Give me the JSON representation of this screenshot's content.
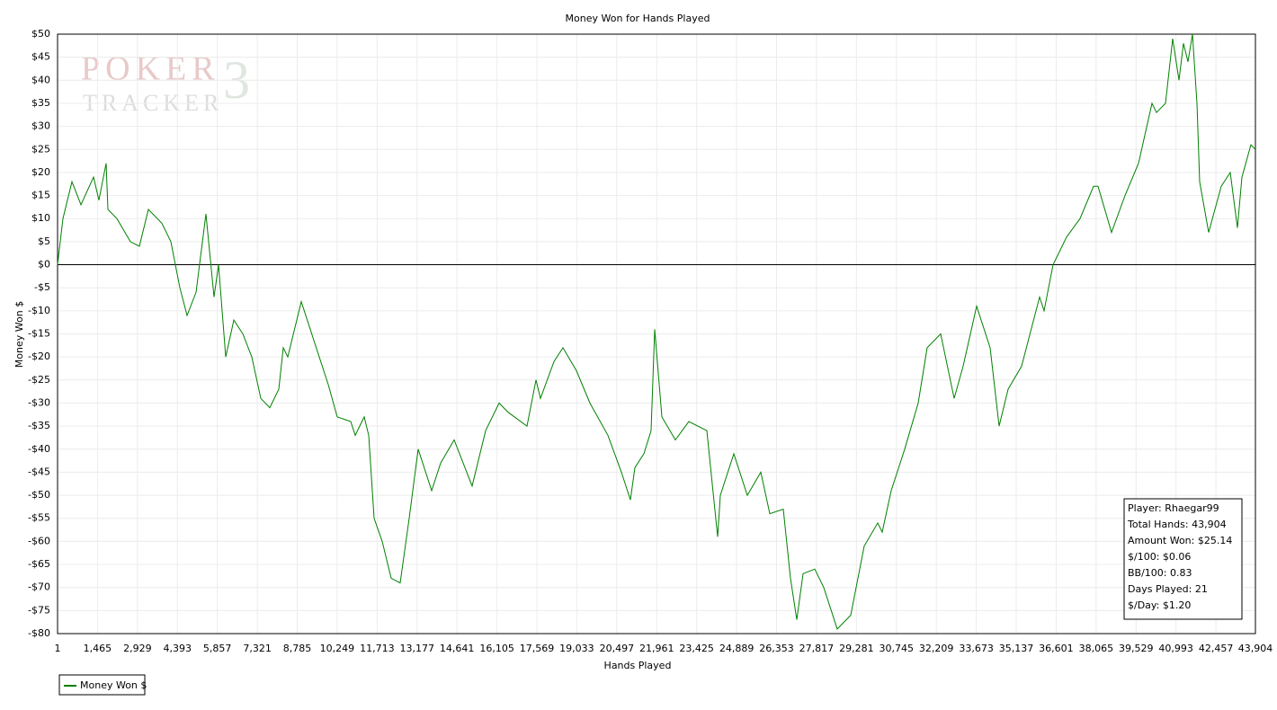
{
  "chart_data": {
    "type": "line",
    "title": "Money Won for Hands Played",
    "xlabel": "Hands Played",
    "ylabel": "Money Won $",
    "watermark": {
      "line1": "POKER",
      "line2": "TRACKER",
      "mark": "3"
    },
    "xlim": [
      1,
      43904
    ],
    "xticks": [
      1,
      {
        "value": 1465,
        "label": "1,465"
      },
      {
        "value": 2929,
        "label": "2,929"
      },
      {
        "value": 4393,
        "label": "4,393"
      },
      {
        "value": 5857,
        "label": "5,857"
      },
      {
        "value": 7321,
        "label": "7,321"
      },
      {
        "value": 8785,
        "label": "8,785"
      },
      {
        "value": 10249,
        "label": "10,249"
      },
      {
        "value": 11713,
        "label": "11,713"
      },
      {
        "value": 13177,
        "label": "13,177"
      },
      {
        "value": 14641,
        "label": "14,641"
      },
      {
        "value": 16105,
        "label": "16,105"
      },
      {
        "value": 17569,
        "label": "17,569"
      },
      {
        "value": 19033,
        "label": "19,033"
      },
      {
        "value": 20497,
        "label": "20,497"
      },
      {
        "value": 21961,
        "label": "21,961"
      },
      {
        "value": 23425,
        "label": "23,425"
      },
      {
        "value": 24889,
        "label": "24,889"
      },
      {
        "value": 26353,
        "label": "26,353"
      },
      {
        "value": 27817,
        "label": "27,817"
      },
      {
        "value": 29281,
        "label": "29,281"
      },
      {
        "value": 30745,
        "label": "30,745"
      },
      {
        "value": 32209,
        "label": "32,209"
      },
      {
        "value": 33673,
        "label": "33,673"
      },
      {
        "value": 35137,
        "label": "35,137"
      },
      {
        "value": 36601,
        "label": "36,601"
      },
      {
        "value": 38065,
        "label": "38,065"
      },
      {
        "value": 39529,
        "label": "39,529"
      },
      {
        "value": 40993,
        "label": "40,993"
      },
      {
        "value": 42457,
        "label": "42,457"
      },
      {
        "value": 43904,
        "label": "43,904"
      }
    ],
    "ylim": [
      -80,
      50
    ],
    "yticks": [
      {
        "value": 50,
        "label": "$50"
      },
      {
        "value": 45,
        "label": "$45"
      },
      {
        "value": 40,
        "label": "$40"
      },
      {
        "value": 35,
        "label": "$35"
      },
      {
        "value": 30,
        "label": "$30"
      },
      {
        "value": 25,
        "label": "$25"
      },
      {
        "value": 20,
        "label": "$20"
      },
      {
        "value": 15,
        "label": "$15"
      },
      {
        "value": 10,
        "label": "$10"
      },
      {
        "value": 5,
        "label": "$5"
      },
      {
        "value": 0,
        "label": "$0"
      },
      {
        "value": -5,
        "label": "-$5"
      },
      {
        "value": -10,
        "label": "-$10"
      },
      {
        "value": -15,
        "label": "-$15"
      },
      {
        "value": -20,
        "label": "-$20"
      },
      {
        "value": -25,
        "label": "-$25"
      },
      {
        "value": -30,
        "label": "-$30"
      },
      {
        "value": -35,
        "label": "-$35"
      },
      {
        "value": -40,
        "label": "-$40"
      },
      {
        "value": -45,
        "label": "-$45"
      },
      {
        "value": -50,
        "label": "-$50"
      },
      {
        "value": -55,
        "label": "-$55"
      },
      {
        "value": -60,
        "label": "-$60"
      },
      {
        "value": -65,
        "label": "-$65"
      },
      {
        "value": -70,
        "label": "-$70"
      },
      {
        "value": -75,
        "label": "-$75"
      },
      {
        "value": -80,
        "label": "-$80"
      }
    ],
    "grid": true,
    "zero_line": true,
    "legend": "bottom-left",
    "x": [
      1,
      198,
      528,
      857,
      1319,
      1517,
      1781,
      1847,
      2176,
      2671,
      3000,
      3330,
      3824,
      4154,
      4483,
      4747,
      5077,
      5439,
      5736,
      5901,
      6165,
      6461,
      6791,
      7121,
      7450,
      7780,
      8109,
      8274,
      8439,
      8933,
      9428,
      9922,
      10252,
      10746,
      10911,
      11240,
      11405,
      11603,
      11900,
      12229,
      12559,
      12888,
      13218,
      13712,
      14041,
      14536,
      15195,
      15689,
      16183,
      16513,
      17205,
      17535,
      17700,
      18194,
      18524,
      19018,
      19512,
      20172,
      20666,
      20996,
      21161,
      21491,
      21755,
      21886,
      22150,
      22644,
      23138,
      23797,
      24193,
      24292,
      24786,
      25281,
      25775,
      26105,
      26599,
      26863,
      27094,
      27324,
      27753,
      28083,
      28577,
      29071,
      29566,
      30060,
      30225,
      30555,
      31049,
      31543,
      31873,
      32367,
      32861,
      33191,
      33686,
      34180,
      34510,
      34839,
      35333,
      35993,
      36158,
      36487,
      36982,
      37476,
      37971,
      38135,
      38630,
      39124,
      39618,
      40113,
      40278,
      40607,
      40871,
      41102,
      41266,
      41431,
      41596,
      41761,
      41860,
      42189,
      42650,
      42980,
      43244,
      43409,
      43739,
      43904
    ],
    "series": [
      {
        "name": "Money Won $",
        "color": "#008000",
        "values": [
          0,
          10,
          18,
          13,
          19,
          14,
          22,
          12,
          10,
          5,
          4,
          12,
          9,
          5,
          -5,
          -11,
          -6,
          11,
          -7,
          0,
          -20,
          -12,
          -15,
          -20,
          -29,
          -31,
          -27,
          -18,
          -20,
          -8,
          -17,
          -26,
          -33,
          -34,
          -37,
          -33,
          -37,
          -55,
          -60,
          -68,
          -69,
          -55,
          -40,
          -49,
          -43,
          -38,
          -48,
          -36,
          -30,
          -32,
          -35,
          -25,
          -29,
          -21,
          -18,
          -23,
          -30,
          -37,
          -45,
          -51,
          -44,
          -41,
          -36,
          -14,
          -33,
          -38,
          -34,
          -36,
          -59,
          -50,
          -41,
          -50,
          -45,
          -54,
          -53,
          -68,
          -77,
          -67,
          -66,
          -70,
          -79,
          -76,
          -61,
          -56,
          -58,
          -49,
          -40,
          -30,
          -18,
          -15,
          -29,
          -22,
          -9,
          -18,
          -35,
          -27,
          -22,
          -7,
          -10,
          0,
          6,
          10,
          17,
          17,
          7,
          15,
          22,
          35,
          33,
          35,
          49,
          40,
          48,
          44,
          50,
          35,
          18,
          7,
          17,
          20,
          8,
          19,
          26,
          25
        ]
      }
    ],
    "info_box": [
      "Player: Rhaegar99",
      "Total Hands: 43,904",
      "Amount Won: $25.14",
      "$/100: $0.06",
      "BB/100: 0.83",
      "Days Played: 21",
      "$/Day: $1.20"
    ]
  }
}
